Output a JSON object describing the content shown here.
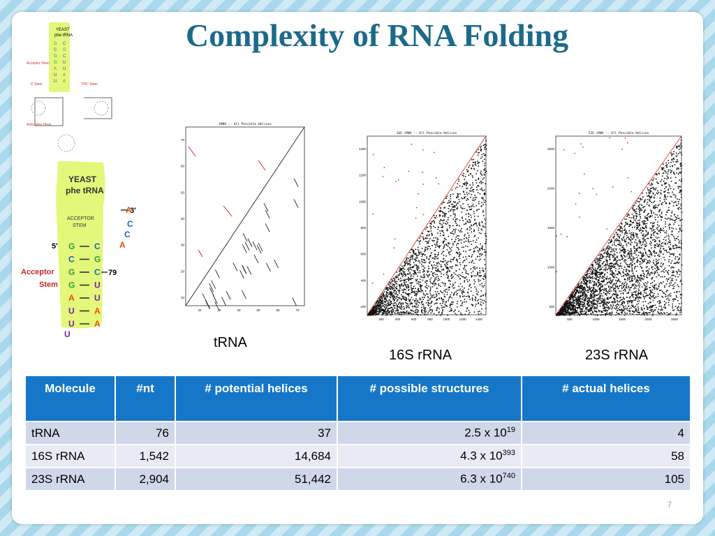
{
  "title": "Complexity of RNA Folding",
  "page_number": "7",
  "small_diagram": {
    "header": [
      "YEAST",
      "phe tRNA"
    ],
    "labels": [
      "ACCEPTOR STEM",
      "Acceptor Stem",
      "D Stem",
      "TΨC Stem",
      "Anticodon Stem"
    ]
  },
  "zoom_diagram": {
    "title_line1": "YEAST",
    "title_line2": "phe tRNA",
    "stem_label_line1": "ACCEPTOR",
    "stem_label_line2": "STEM",
    "side_label_line1": "Acceptor",
    "side_label_line2": "Stem",
    "five_prime": "5'",
    "three_prime": "3'",
    "pos79": "79",
    "top_bases": [
      "A",
      "C",
      "C",
      "A"
    ],
    "pairs": [
      {
        "left": "G",
        "right": "C"
      },
      {
        "left": "C",
        "right": "G"
      },
      {
        "left": "G",
        "right": "C"
      },
      {
        "left": "G",
        "right": "U"
      },
      {
        "left": "A",
        "right": "U"
      },
      {
        "left": "U",
        "right": "A"
      },
      {
        "left": "U",
        "right": "A"
      }
    ],
    "bottom_base": "U"
  },
  "plots": [
    {
      "caption": "tRNA",
      "plot_title": "tRNA -- All Possible Helices",
      "x_ticks": [
        "20",
        "30",
        "40",
        "50",
        "60",
        "70"
      ],
      "y_ticks": [
        "70",
        "60",
        "50",
        "40",
        "30",
        "20",
        "10"
      ]
    },
    {
      "caption": "16S rRNA",
      "plot_title": "16S rRNA -- All Possible Helices",
      "x_ticks": [
        "200",
        "400",
        "600",
        "800",
        "1000",
        "1200",
        "1400"
      ],
      "y_ticks": [
        "1400",
        "1200",
        "1000",
        "800",
        "600",
        "400",
        "200"
      ]
    },
    {
      "caption": "23S rRNA",
      "plot_title": "23S rRNA -- All Possible Helices",
      "x_ticks": [
        "500",
        "1000",
        "1500",
        "2000",
        "2500"
      ],
      "y_ticks": [
        "2500",
        "2000",
        "1500",
        "1000",
        "500"
      ]
    }
  ],
  "table": {
    "headers": [
      "Molecule",
      "#nt",
      "# potential helices",
      "# possible structures",
      "# actual helices"
    ],
    "rows": [
      {
        "molecule": "tRNA",
        "nt": "76",
        "potential": "37",
        "structures_base": "2.5 x 10",
        "structures_exp": "19",
        "actual": "4"
      },
      {
        "molecule": "16S rRNA",
        "nt": "1,542",
        "potential": "14,684",
        "structures_base": "4.3 x 10",
        "structures_exp": "393",
        "actual": "58"
      },
      {
        "molecule": "23S rRNA",
        "nt": "2,904",
        "potential": "51,442",
        "structures_base": "6.3 x 10",
        "structures_exp": "740",
        "actual": "105"
      }
    ]
  },
  "colors": {
    "title": "#1c6a8a",
    "header_bg": "#1677c9",
    "row_dark": "#cfd7e9",
    "row_light": "#e8ebf4",
    "highlight": "#e3f77a",
    "helix_red": "#e02020"
  }
}
